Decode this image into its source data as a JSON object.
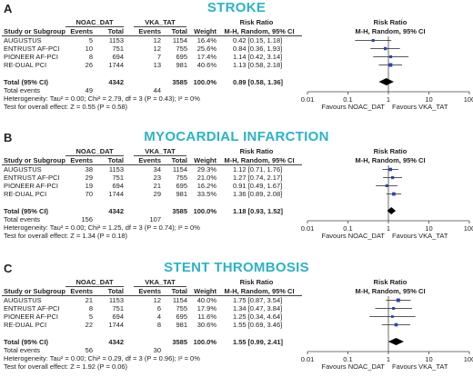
{
  "chart_data": [
    {
      "type": "forest",
      "panel_label": "A",
      "title": "STROKE",
      "group1": "NOAC_DAT",
      "group2": "VKA_TAT",
      "columns": {
        "study": "Study or Subgroup",
        "events": "Events",
        "total": "Total",
        "weight": "Weight",
        "rr_header": "Risk Ratio",
        "rr_method": "M-H, Random, 95% CI"
      },
      "studies": [
        {
          "name": "AUGUSTUS",
          "e1": "5",
          "n1": "1153",
          "e2": "12",
          "n2": "1154",
          "weight": "16.4%",
          "ci_text": "0.42 [0.15, 1.18]",
          "rr": 0.42,
          "lo": 0.15,
          "hi": 1.18
        },
        {
          "name": "ENTRUST AF-PCI",
          "e1": "10",
          "n1": "751",
          "e2": "12",
          "n2": "755",
          "weight": "25.6%",
          "ci_text": "0.84 [0.36, 1.93]",
          "rr": 0.84,
          "lo": 0.36,
          "hi": 1.93
        },
        {
          "name": "PIONEER AF-PCI",
          "e1": "8",
          "n1": "694",
          "e2": "7",
          "n2": "695",
          "weight": "17.4%",
          "ci_text": "1.14 [0.42, 3.14]",
          "rr": 1.14,
          "lo": 0.42,
          "hi": 3.14
        },
        {
          "name": "RE-DUAL PCI",
          "e1": "26",
          "n1": "1744",
          "e2": "13",
          "n2": "981",
          "weight": "40.6%",
          "ci_text": "1.13 [0.58, 2.18]",
          "rr": 1.13,
          "lo": 0.58,
          "hi": 2.18
        }
      ],
      "total": {
        "label": "Total (95% CI)",
        "n1": "4342",
        "n2": "3585",
        "weight": "100.0%",
        "ci_text": "0.89 [0.58, 1.36]",
        "rr": 0.89,
        "lo": 0.58,
        "hi": 1.36
      },
      "total_events": {
        "label": "Total events",
        "e1": "49",
        "e2": "44"
      },
      "heterogeneity": "Heterogeneity: Tau² = 0.00; Chi² = 2.79, df = 3 (P = 0.43); I² = 0%",
      "overall_effect": "Test for overall effect: Z = 0.55 (P = 0.58)",
      "axis": {
        "scale": "log",
        "ticks": [
          "0.01",
          "0.1",
          "1",
          "10",
          "100"
        ],
        "tick_values": [
          0.01,
          0.1,
          1,
          10,
          100
        ],
        "favours_left": "Favours NOAC_DAT",
        "favours_right": "Favours VKA_TAT"
      }
    },
    {
      "type": "forest",
      "panel_label": "B",
      "title": "MYOCARDIAL INFARCTION",
      "group1": "NOAC_DAT",
      "group2": "VKA_TAT",
      "columns": {
        "study": "Study or Subgroup",
        "events": "Events",
        "total": "Total",
        "weight": "Weight",
        "rr_header": "Risk Ratio",
        "rr_method": "M-H, Random, 95% CI"
      },
      "studies": [
        {
          "name": "AUGUSTUS",
          "e1": "38",
          "n1": "1153",
          "e2": "34",
          "n2": "1154",
          "weight": "29.3%",
          "ci_text": "1.12 [0.71, 1.76]",
          "rr": 1.12,
          "lo": 0.71,
          "hi": 1.76
        },
        {
          "name": "ENTRUST AF-PCI",
          "e1": "29",
          "n1": "751",
          "e2": "23",
          "n2": "755",
          "weight": "21.0%",
          "ci_text": "1.27 [0.74, 2.17]",
          "rr": 1.27,
          "lo": 0.74,
          "hi": 2.17
        },
        {
          "name": "PIONEER AF-PCI",
          "e1": "19",
          "n1": "694",
          "e2": "21",
          "n2": "695",
          "weight": "16.2%",
          "ci_text": "0.91 [0.49, 1.67]",
          "rr": 0.91,
          "lo": 0.49,
          "hi": 1.67
        },
        {
          "name": "RE-DUAL PCI",
          "e1": "70",
          "n1": "1744",
          "e2": "29",
          "n2": "981",
          "weight": "33.5%",
          "ci_text": "1.36 [0.89, 2.08]",
          "rr": 1.36,
          "lo": 0.89,
          "hi": 2.08
        }
      ],
      "total": {
        "label": "Total (95% CI)",
        "n1": "4342",
        "n2": "3585",
        "weight": "100.0%",
        "ci_text": "1.18 [0.93, 1.52]",
        "rr": 1.18,
        "lo": 0.93,
        "hi": 1.52
      },
      "total_events": {
        "label": "Total events",
        "e1": "156",
        "e2": "107"
      },
      "heterogeneity": "Heterogeneity: Tau² = 0.00; Chi² = 1.25, df = 3 (P = 0.74); I² = 0%",
      "overall_effect": "Test for overall effect: Z = 1.34 (P = 0.18)",
      "axis": {
        "scale": "log",
        "ticks": [
          "0.01",
          "0.1",
          "1",
          "10",
          "100"
        ],
        "tick_values": [
          0.01,
          0.1,
          1,
          10,
          100
        ],
        "favours_left": "Favours NOAC_DAT",
        "favours_right": "Favours VKA_TAT"
      }
    },
    {
      "type": "forest",
      "panel_label": "C",
      "title": "STENT THROMBOSIS",
      "group1": "NOAC_DAT",
      "group2": "VKA_TAT",
      "columns": {
        "study": "Study or Subgroup",
        "events": "Events",
        "total": "Total",
        "weight": "Weight",
        "rr_header": "Risk Ratio",
        "rr_method": "M-H, Random, 95% CI"
      },
      "studies": [
        {
          "name": "AUGUSTUS",
          "e1": "21",
          "n1": "1153",
          "e2": "12",
          "n2": "1154",
          "weight": "40.0%",
          "ci_text": "1.75 [0.87, 3.54]",
          "rr": 1.75,
          "lo": 0.87,
          "hi": 3.54
        },
        {
          "name": "ENTRUST AF-PCI",
          "e1": "8",
          "n1": "751",
          "e2": "6",
          "n2": "755",
          "weight": "17.9%",
          "ci_text": "1.34 [0.47, 3.84]",
          "rr": 1.34,
          "lo": 0.47,
          "hi": 3.84
        },
        {
          "name": "PIONEER AF-PCI",
          "e1": "5",
          "n1": "694",
          "e2": "4",
          "n2": "695",
          "weight": "11.6%",
          "ci_text": "1.25 [0.34, 4.64]",
          "rr": 1.25,
          "lo": 0.34,
          "hi": 4.64
        },
        {
          "name": "RE-DUAL PCI",
          "e1": "22",
          "n1": "1744",
          "e2": "8",
          "n2": "981",
          "weight": "30.6%",
          "ci_text": "1.55 [0.69, 3.46]",
          "rr": 1.55,
          "lo": 0.69,
          "hi": 3.46
        }
      ],
      "total": {
        "label": "Total (95% CI)",
        "n1": "4342",
        "n2": "3585",
        "weight": "100.0%",
        "ci_text": "1.55 [0.99, 2.41]",
        "rr": 1.55,
        "lo": 0.99,
        "hi": 2.41
      },
      "total_events": {
        "label": "Total events",
        "e1": "56",
        "e2": "30"
      },
      "heterogeneity": "Heterogeneity: Tau² = 0.00; Chi² = 0.29, df = 3 (P = 0.96); I² = 0%",
      "overall_effect": "Test for overall effect: Z = 1.92 (P = 0.06)",
      "axis": {
        "scale": "log",
        "ticks": [
          "0.01",
          "0.1",
          "1",
          "10",
          "100"
        ],
        "tick_values": [
          0.01,
          0.1,
          1,
          10,
          100
        ],
        "favours_left": "Favours NOAC_DAT",
        "favours_right": "Favours VKA_TAT"
      }
    }
  ],
  "colors": {
    "title": "#2bb3c8",
    "marker": "#2a46a8",
    "diamond": "#000000",
    "line": "#444444"
  }
}
